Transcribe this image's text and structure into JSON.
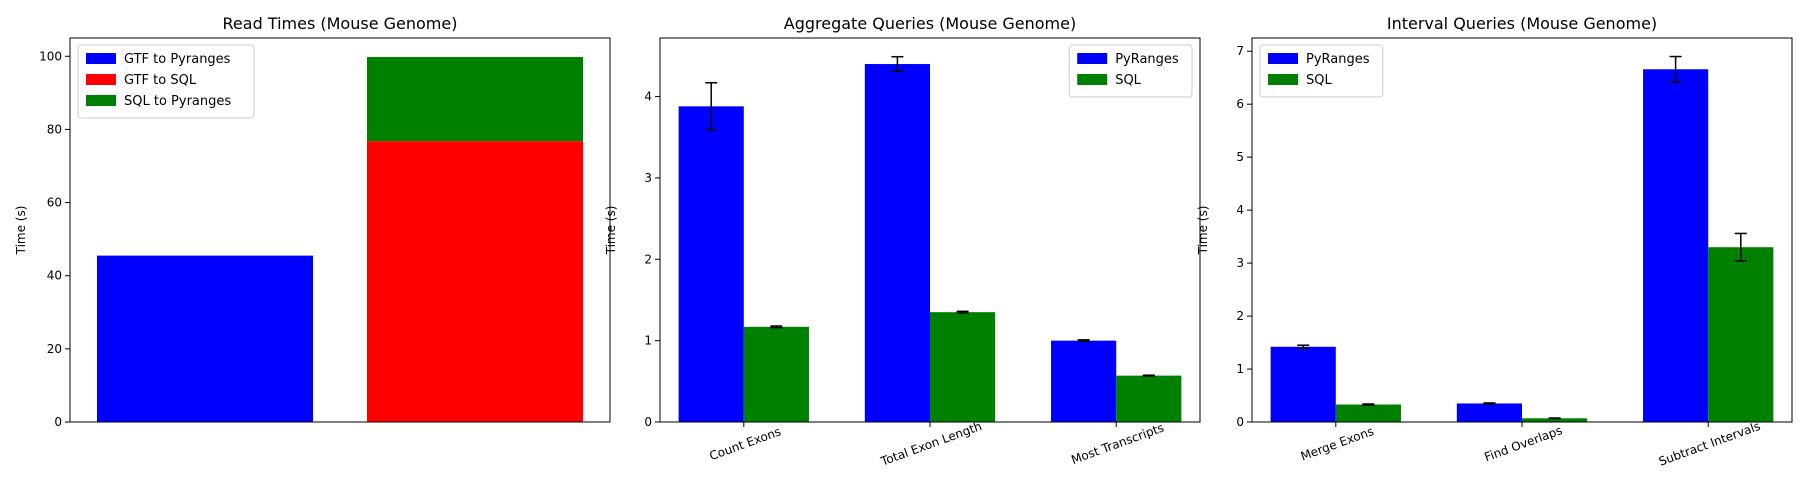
{
  "chart_data": [
    {
      "type": "bar",
      "subtype": "stacked",
      "title": "Read Times (Mouse Genome)",
      "xlabel": "",
      "ylabel": "Time (s)",
      "ylim": [
        0,
        105
      ],
      "yticks": [
        0,
        20,
        40,
        60,
        80,
        100
      ],
      "legend_position": "upper left",
      "legend": [
        "GTF to Pyranges",
        "GTF to SQL",
        "SQL to Pyranges"
      ],
      "bars": [
        {
          "segments": [
            {
              "series": "GTF to Pyranges",
              "value": 45.5,
              "color": "#0000ff"
            }
          ]
        },
        {
          "segments": [
            {
              "series": "GTF to SQL",
              "value": 76.8,
              "color": "#ff0000"
            },
            {
              "series": "SQL to Pyranges",
              "value": 23.0,
              "color": "#008000"
            }
          ]
        }
      ],
      "show_x_ticks": false
    },
    {
      "type": "bar",
      "subtype": "grouped",
      "title": "Aggregate Queries (Mouse Genome)",
      "xlabel": "",
      "ylabel": "Time (s)",
      "ylim": [
        0,
        4.72
      ],
      "yticks": [
        0,
        1,
        2,
        3,
        4
      ],
      "legend_position": "upper right",
      "categories": [
        "Count Exons",
        "Total Exon Length",
        "Most Transcripts"
      ],
      "series": [
        {
          "name": "PyRanges",
          "color": "#0000ff",
          "values": [
            3.88,
            4.4,
            1.0
          ],
          "errors": [
            0.29,
            0.09,
            0.01
          ]
        },
        {
          "name": "SQL",
          "color": "#008000",
          "values": [
            1.17,
            1.35,
            0.57
          ],
          "errors": [
            0.01,
            0.01,
            0.005
          ]
        }
      ]
    },
    {
      "type": "bar",
      "subtype": "grouped",
      "title": "Interval Queries (Mouse Genome)",
      "xlabel": "",
      "ylabel": "Time (s)",
      "ylim": [
        0,
        7.25
      ],
      "yticks": [
        0,
        1,
        2,
        3,
        4,
        5,
        6,
        7
      ],
      "legend_position": "upper left",
      "categories": [
        "Merge Exons",
        "Find Overlaps",
        "Subtract Intervals"
      ],
      "series": [
        {
          "name": "PyRanges",
          "color": "#0000ff",
          "values": [
            1.42,
            0.35,
            6.66
          ],
          "errors": [
            0.03,
            0.01,
            0.24
          ]
        },
        {
          "name": "SQL",
          "color": "#008000",
          "values": [
            0.33,
            0.07,
            3.3
          ],
          "errors": [
            0.01,
            0.005,
            0.26
          ]
        }
      ]
    }
  ]
}
